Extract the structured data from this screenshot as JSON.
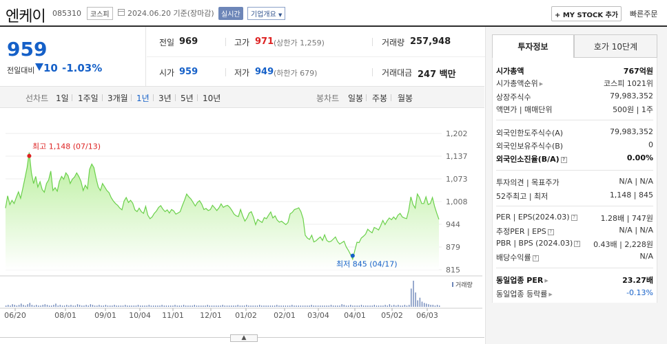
{
  "header": {
    "stock_name": "엔케이",
    "stock_code": "085310",
    "market": "코스피",
    "date": "2024.06.20 기준(장마감)",
    "realtime_btn": "실시간",
    "company_btn": "기업개요",
    "mystock_btn": "+ MY STOCK 추가",
    "quick_order": "빠른주문"
  },
  "price": {
    "current": "959",
    "change_label": "전일대비",
    "change_abs": "10",
    "change_pct": "-1.03%"
  },
  "stats": {
    "prev_label": "전일",
    "prev_val": "969",
    "high_label": "고가",
    "high_val": "971",
    "high_sub": "(상한가 1,259)",
    "volume_label": "거래량",
    "volume_val": "257,948",
    "open_label": "시가",
    "open_val": "959",
    "low_label": "저가",
    "low_val": "949",
    "low_sub": "(하한가 679)",
    "amount_label": "거래대금",
    "amount_val": "247 백만"
  },
  "chart_tabs": {
    "line": "선차트",
    "line_periods": [
      "1일",
      "1주일",
      "3개월",
      "1년",
      "3년",
      "5년",
      "10년"
    ],
    "active_period": "1년",
    "candle": "봉차트",
    "candle_periods": [
      "일봉",
      "주봉",
      "월봉"
    ]
  },
  "chart_data": {
    "type": "area",
    "y_ticks": [
      "1,202",
      "1,137",
      "1,073",
      "1,008",
      "944",
      "879",
      "815"
    ],
    "ylim": [
      815,
      1202
    ],
    "x_ticks": [
      "06/20",
      "08/01",
      "09/01",
      "10/04",
      "11/01",
      "12/01",
      "01/02",
      "02/01",
      "03/04",
      "04/01",
      "05/02",
      "06/03"
    ],
    "max_annotation": "최고 1,148 (07/13)",
    "min_annotation": "최저 845 (04/17)",
    "volume_legend": "거래량",
    "series": [
      {
        "values": [
          990,
          1025,
          1000,
          1012,
          1003,
          1020,
          1036,
          1018,
          1045,
          1075,
          1105,
          1148,
          1090,
          1060,
          1080,
          1050,
          1065,
          1043,
          1035,
          1060,
          1070,
          1095,
          1040,
          1048,
          1038,
          1066,
          1080,
          1072,
          1090,
          1082,
          1060,
          1072,
          1078,
          1090,
          1080,
          1066,
          1040,
          1055,
          1045,
          1100,
          1115,
          1105,
          1075,
          1050,
          1040,
          1060,
          1050,
          1040,
          1034,
          1020,
          1010,
          1003,
          998,
          990,
          985,
          1010,
          1020,
          1006,
          1012,
          1004,
          985,
          980,
          990,
          980,
          975,
          995,
          970,
          960,
          965,
          975,
          982,
          992,
          997,
          987,
          980,
          985,
          976,
          986,
          982,
          973,
          976,
          980,
          997,
          1012,
          1030,
          1022,
          1016,
          1006,
          996,
          1006,
          1011,
          1001,
          986,
          989,
          983,
          986,
          998,
          991,
          983,
          991,
          1002,
          992,
          996,
          998,
          992,
          983,
          973,
          968,
          966,
          986,
          968,
          953,
          962,
          976,
          980,
          964,
          943,
          958,
          953,
          949,
          963,
          960,
          970,
          979,
          962,
          968,
          956,
          950,
          953,
          948,
          943,
          949,
          974,
          978,
          986,
          988,
          991,
          980,
          960,
          913,
          905,
          901,
          913,
          894,
          897,
          903,
          908,
          898,
          914,
          898,
          894,
          896,
          902,
          908,
          895,
          888,
          892,
          896,
          880,
          870,
          858,
          845,
          870,
          893,
          892,
          905,
          910,
          916,
          930,
          924,
          920,
          935,
          932,
          928,
          940,
          955,
          943,
          954,
          962,
          957,
          965,
          958,
          970,
          975,
          965,
          962,
          960,
          984,
          1022,
          1000,
          990,
          1030,
          1020,
          1003,
          1003,
          1022,
          1000,
          1003,
          1020,
          995,
          975,
          958
        ]
      }
    ],
    "volume": [
      2,
      3,
      2,
      4,
      3,
      2,
      3,
      5,
      3,
      2,
      4,
      6,
      3,
      2,
      3,
      2,
      2,
      3,
      4,
      3,
      2,
      2,
      3,
      5,
      2,
      3,
      2,
      2,
      3,
      2,
      3,
      2,
      2,
      4,
      3,
      2,
      2,
      3,
      2,
      4,
      3,
      2,
      2,
      3,
      2,
      2,
      3,
      2,
      2,
      2,
      3,
      2,
      2,
      2,
      2,
      3,
      2,
      2,
      2,
      2,
      2,
      3,
      2,
      2,
      2,
      2,
      3,
      2,
      2,
      2,
      2,
      2,
      3,
      2,
      2,
      2,
      2,
      2,
      3,
      2,
      2,
      2,
      3,
      2,
      2,
      2,
      2,
      3,
      2,
      2,
      2,
      2,
      2,
      3,
      2,
      2,
      2,
      2,
      2,
      2,
      3,
      2,
      2,
      2,
      2,
      2,
      2,
      3,
      2,
      2,
      2,
      3,
      2,
      2,
      2,
      2,
      2,
      3,
      2,
      2,
      2,
      2,
      2,
      2,
      2,
      3,
      2,
      2,
      2,
      2,
      2,
      2,
      3,
      2,
      2,
      2,
      2,
      2,
      2,
      2,
      2,
      3,
      2,
      2,
      2,
      2,
      2,
      2,
      2,
      2,
      3,
      2,
      2,
      2,
      2,
      4,
      3,
      2,
      2,
      3,
      2,
      2,
      2,
      2,
      3,
      2,
      2,
      2,
      2,
      2,
      3,
      2,
      2,
      2,
      2,
      3,
      2,
      4,
      2,
      3,
      2,
      3,
      2,
      2,
      3,
      2,
      3,
      28,
      40,
      22,
      10,
      14,
      8,
      6,
      5,
      4,
      3,
      3,
      2,
      3,
      2
    ]
  },
  "right_panel": {
    "tab_invest": "투자정보",
    "tab_quote": "호가 10단계",
    "rows_1": [
      {
        "label": "시가총액",
        "value": "767억원"
      },
      {
        "label": "시가총액순위",
        "value": "코스피 1021위"
      },
      {
        "label": "상장주식수",
        "value": "79,983,352"
      },
      {
        "label": "액면가 | 매매단위",
        "value": "500원 | 1주"
      }
    ],
    "rows_2": [
      {
        "label": "외국인한도주식수(A)",
        "value": "79,983,352"
      },
      {
        "label": "외국인보유주식수(B)",
        "value": "0"
      },
      {
        "label": "외국인소진율(B/A)",
        "value": "0.00%"
      }
    ],
    "rows_3": [
      {
        "label": "투자의견 | 목표주가",
        "value": "N/A | N/A"
      },
      {
        "label": "52주최고 | 최저",
        "value": "1,148 | 845"
      }
    ],
    "rows_4": [
      {
        "label": "PER | EPS(2024.03)",
        "value": "1.28배 | 747원"
      },
      {
        "label": "추정PER | EPS",
        "value": "N/A | N/A"
      },
      {
        "label": "PBR | BPS (2024.03)",
        "value": "0.43배 | 2,228원"
      },
      {
        "label": "배당수익률",
        "value": "N/A"
      }
    ],
    "rows_5": [
      {
        "label": "동일업종 PER",
        "value": "23.27배"
      },
      {
        "label": "동일업종 등락률",
        "value": "-0.13%"
      }
    ]
  }
}
